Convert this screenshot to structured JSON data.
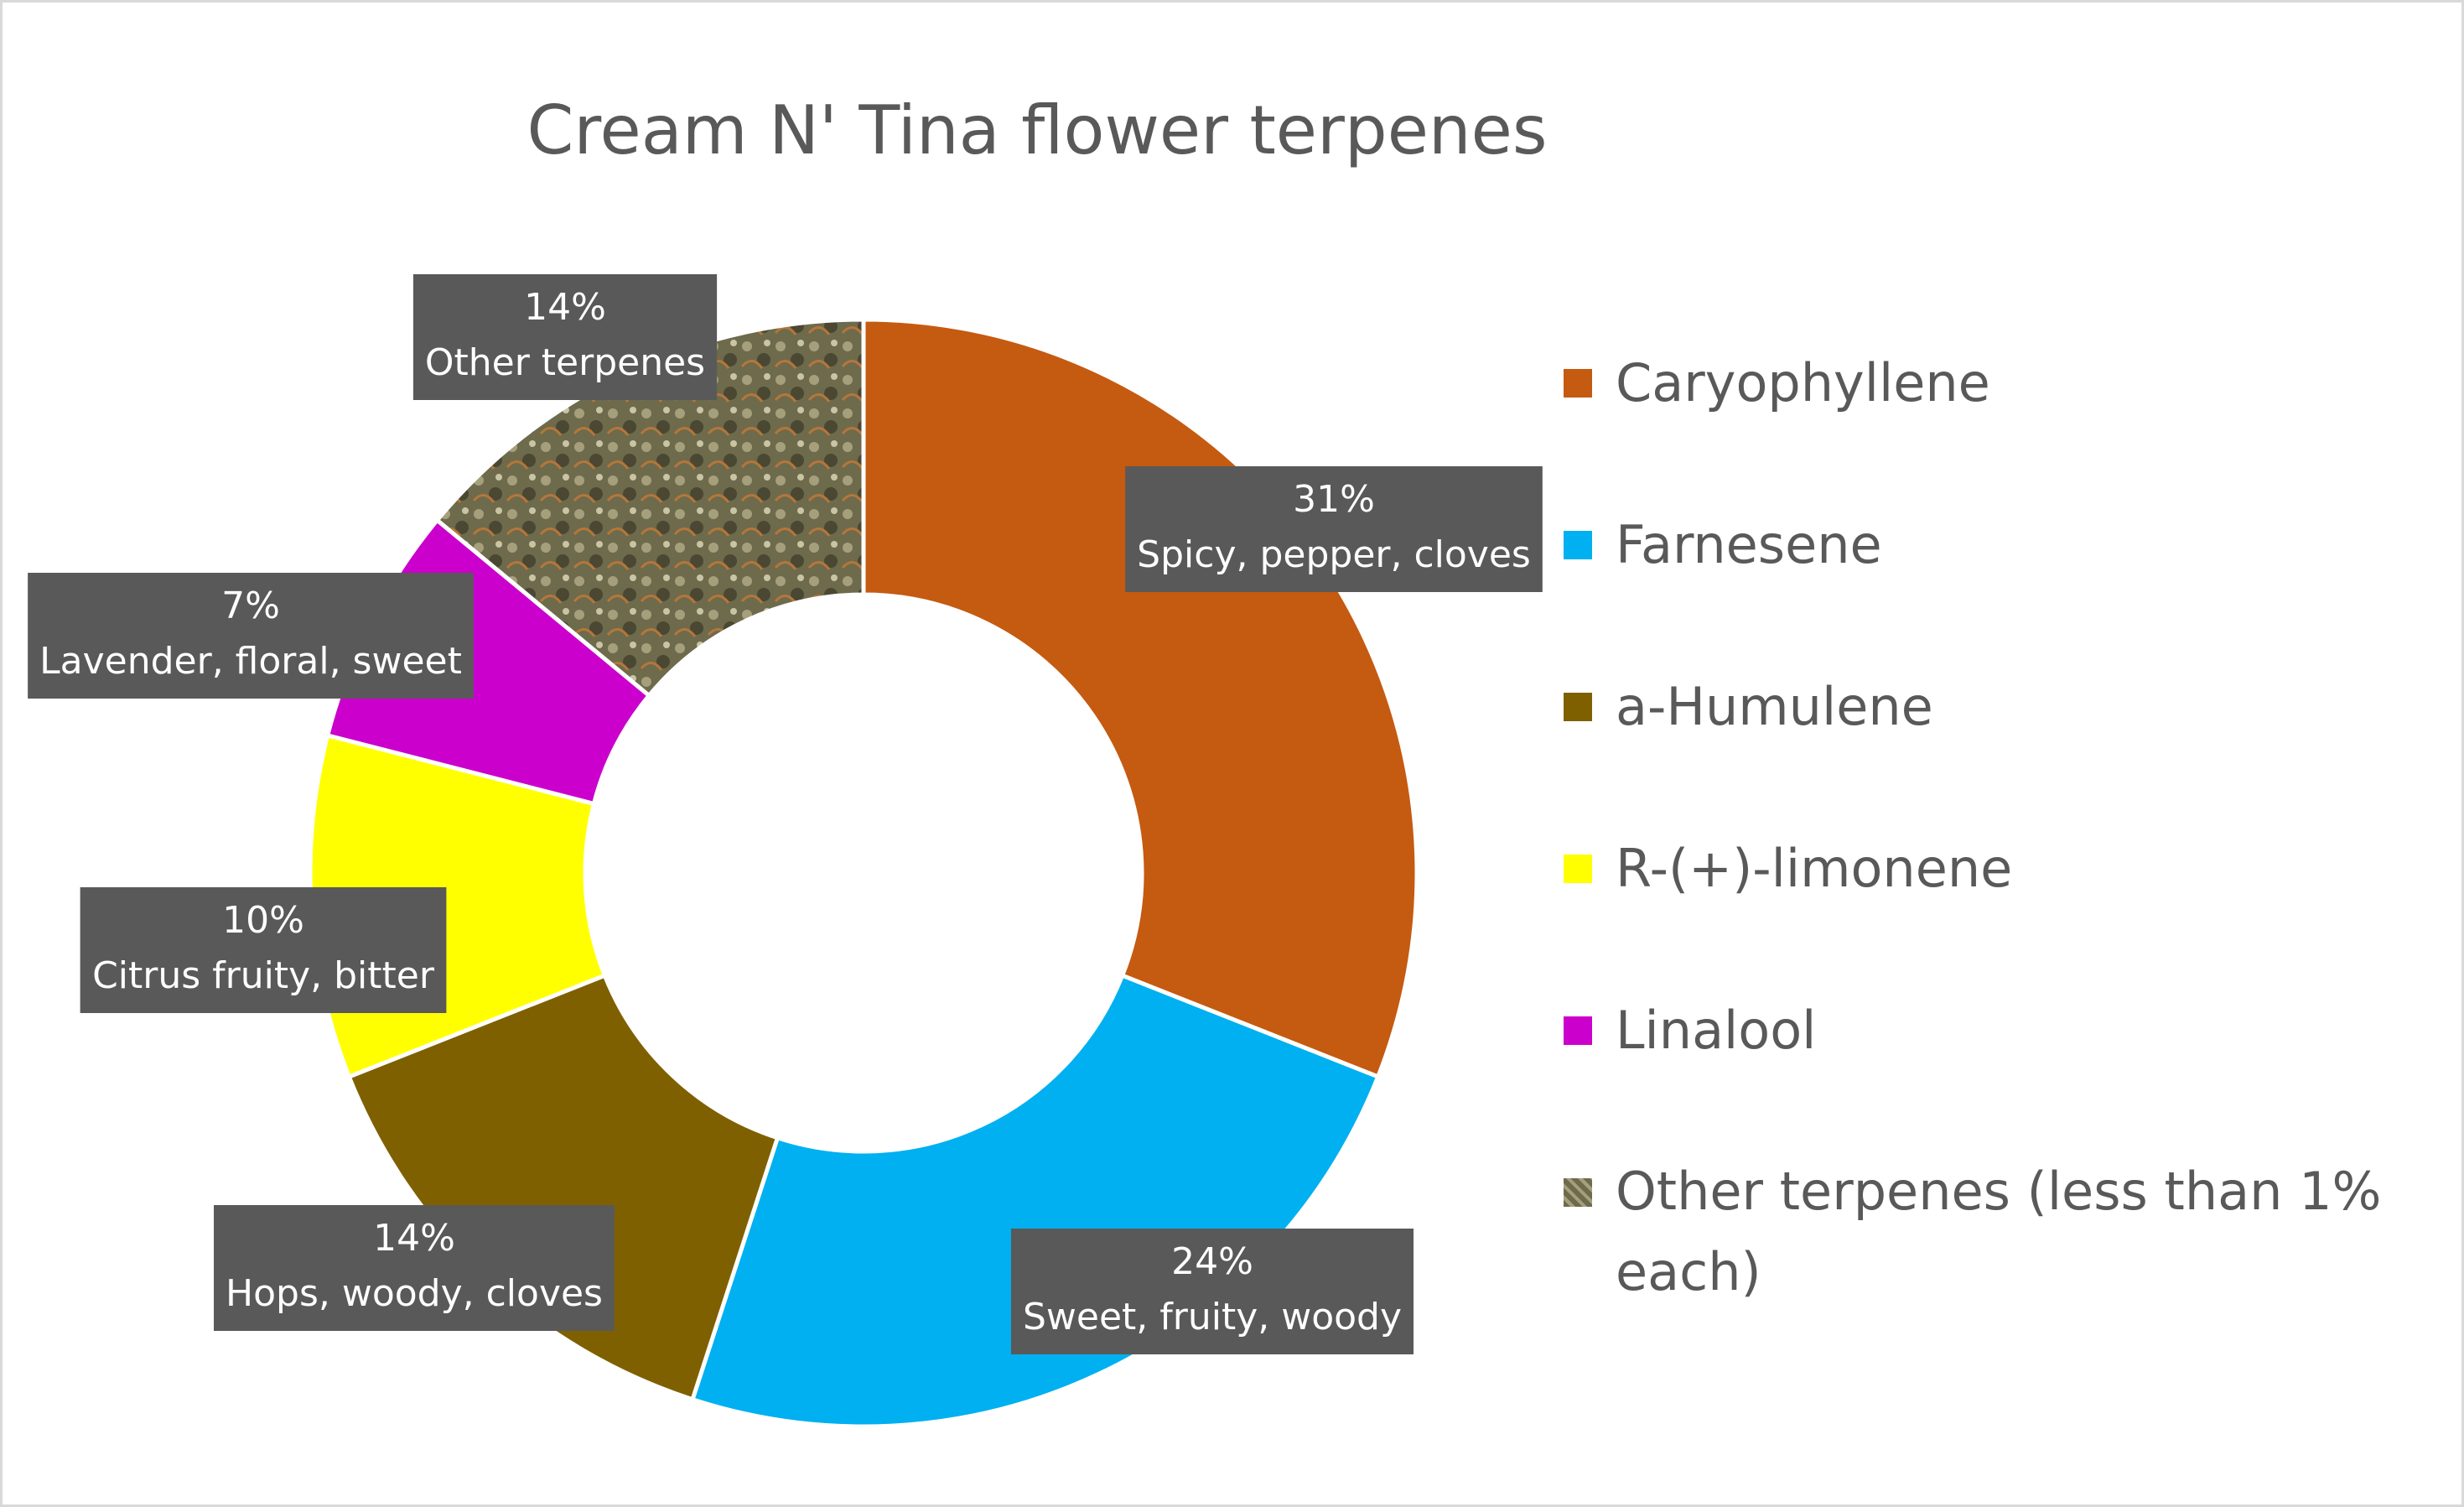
{
  "chart_data": {
    "type": "donut",
    "title": "Cream N' Tina flower terpenes",
    "categories": [
      "Caryophyllene",
      "Farnesene",
      "a-Humulene",
      "R-(+)-limonene",
      "Linalool",
      "Other terpenes (less than 1% each)"
    ],
    "values": [
      31,
      24,
      14,
      10,
      7,
      14
    ],
    "value_labels": [
      "31%",
      "24%",
      "14%",
      "10%",
      "7%",
      "14%"
    ],
    "label_descriptions": [
      "Spicy, pepper, cloves",
      "Sweet, fruity, woody",
      "Hops, woody, cloves",
      "Citrus fruity, bitter",
      "Lavender, floral, sweet",
      "Other terpenes"
    ],
    "colors": [
      "#c55a11",
      "#00b0f0",
      "#7f6000",
      "#ffff00",
      "#cc00cc",
      "#6e6a4c"
    ],
    "legend": "right"
  }
}
